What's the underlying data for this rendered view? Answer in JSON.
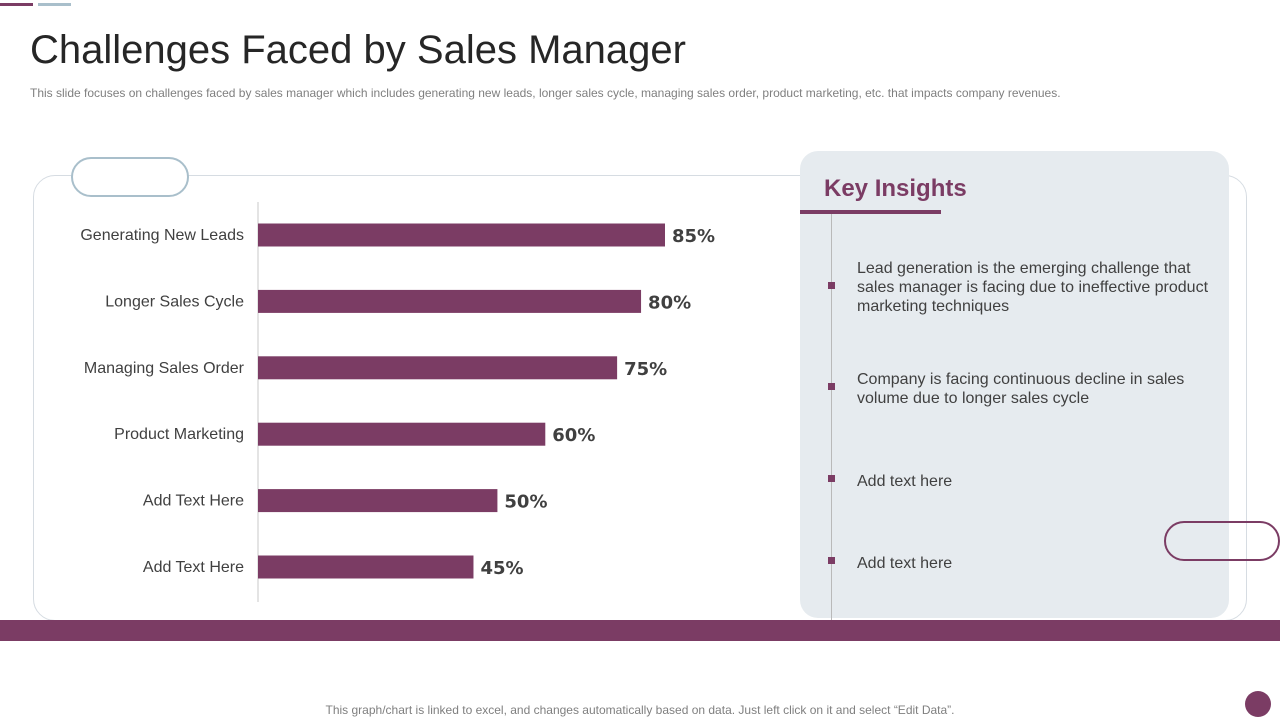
{
  "slide": {
    "title": "Challenges Faced by Sales Manager",
    "subtitle": "This slide focuses on challenges faced by sales manager which includes generating new leads, longer sales cycle, managing sales order, product marketing, etc. that impacts company revenues.",
    "footer_note": "This graph/chart is linked to excel,  and changes automatically based on data. Just left click on it and select “Edit Data”."
  },
  "colors": {
    "accent": "#7b3c64",
    "accent_secondary": "#a9bfcb",
    "panel_bg": "#e6ebef",
    "axis": "#c8c8c8"
  },
  "chart_data": {
    "type": "bar",
    "orientation": "horizontal",
    "categories": [
      "Generating New Leads",
      "Longer Sales Cycle",
      "Managing Sales Order",
      "Product Marketing",
      "Add Text Here",
      "Add Text Here"
    ],
    "values": [
      85,
      80,
      75,
      60,
      50,
      45
    ],
    "value_labels": [
      "85%",
      "80%",
      "75%",
      "60%",
      "50%",
      "45%"
    ],
    "xlim": [
      0,
      100
    ],
    "grid": false,
    "legend": "none"
  },
  "insights": {
    "title": "Key Insights",
    "items": [
      "Lead generation is the emerging challenge that sales manager is facing due to ineffective product marketing techniques",
      "Company is facing continuous  decline in sales volume due to longer sales cycle",
      "Add text here",
      "Add text here"
    ]
  }
}
